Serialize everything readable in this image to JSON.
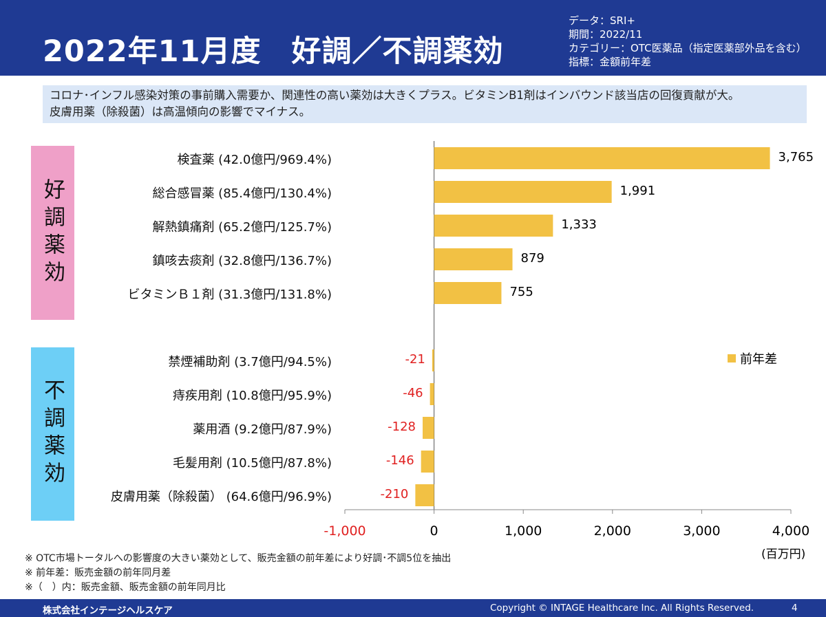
{
  "header": {
    "title": "2022年11月度　好調／不調薬効",
    "meta": [
      "データ：SRI+",
      "期間：2022/11",
      "カテゴリー：OTC医薬品（指定医薬部外品を含む）",
      "指標：金額前年差"
    ]
  },
  "summary": [
    "コロナ･インフル感染対策の事前購入需要か、関連性の高い薬効は大きくプラス。ビタミンB1剤はインバウンド該当店の回復貢献が大。",
    "皮膚用薬（除殺菌）は高温傾向の影響でマイナス。"
  ],
  "groups": {
    "good": "好調薬効",
    "bad": "不調薬効"
  },
  "colors": {
    "bar": "#f2c144",
    "negative_label": "#e02020",
    "header": "#1f3a93",
    "good_box": "#efa0c8",
    "bad_box": "#6dcff6",
    "summary_bg": "#dbe7f7"
  },
  "chart_data": {
    "type": "bar",
    "orientation": "horizontal",
    "categories": [
      "検査薬 (42.0億円/969.4%)",
      "総合感冒薬 (85.4億円/130.4%)",
      "解熱鎮痛剤 (65.2億円/125.7%)",
      "鎮咳去痰剤 (32.8億円/136.7%)",
      "ビタミンＢ１剤 (31.3億円/131.8%)",
      "禁煙補助剤 (3.7億円/94.5%)",
      "痔疾用剤 (10.8億円/95.9%)",
      "薬用酒 (9.2億円/87.9%)",
      "毛髪用剤 (10.5億円/87.8%)",
      "皮膚用薬（除殺菌） (64.6億円/96.9%)"
    ],
    "series": [
      {
        "name": "前年差",
        "values": [
          3765,
          1991,
          1333,
          879,
          755,
          -21,
          -46,
          -128,
          -146,
          -210
        ]
      }
    ],
    "value_labels": [
      "3,765",
      "1,991",
      "1,333",
      "879",
      "755",
      "-21",
      "-46",
      "-128",
      "-146",
      "-210"
    ],
    "xlim": [
      -1000,
      4000
    ],
    "xticks": [
      -1000,
      0,
      1000,
      2000,
      3000,
      4000
    ],
    "xtick_labels": [
      "-1,000",
      "0",
      "1,000",
      "2,000",
      "3,000",
      "4,000"
    ],
    "unit": "(百万円)",
    "legend": "前年差",
    "legend_position": "right"
  },
  "notes": [
    "※ OTC市場トータルへの影響度の大きい薬効として、販売金額の前年差により好調･不調5位を抽出",
    "※ 前年差：販売金額の前年同月差",
    "※（　）内：販売金額、販売金額の前年同月比"
  ],
  "footer": {
    "company": "株式会社インテージヘルスケア",
    "copyright": "Copyright © INTAGE Healthcare Inc. All Rights Reserved.",
    "page": "4"
  }
}
